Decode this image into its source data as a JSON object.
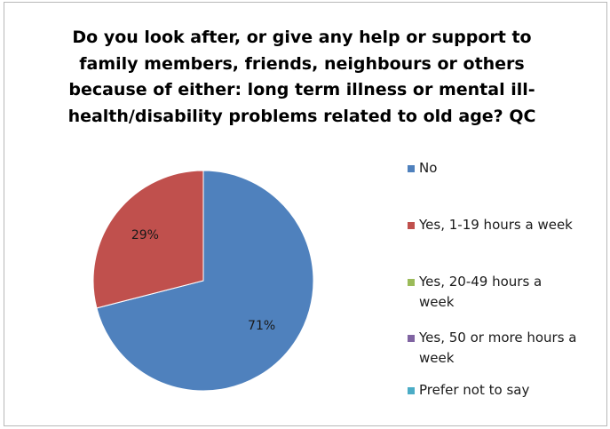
{
  "chart_data": {
    "type": "pie",
    "title_lines": [
      "Do you look after, or give any help or support to",
      "family members, friends, neighbours or others",
      "because of either: long term illness or mental ill-",
      "health/disability problems related to old age? QC"
    ],
    "categories": [
      "No",
      "Yes, 1-19 hours a week",
      "Yes, 20-49 hours a week",
      "Yes, 50 or more hours a week",
      "Prefer not to say"
    ],
    "legend_lines": [
      [
        "No"
      ],
      [
        "Yes, 1-19 hours a week"
      ],
      [
        "Yes, 20-49 hours a",
        "week"
      ],
      [
        "Yes, 50 or more hours a",
        "week"
      ],
      [
        "Prefer not to say"
      ]
    ],
    "values": [
      71,
      29,
      0,
      0,
      0
    ],
    "data_labels": [
      "71%",
      "29%",
      "",
      "",
      ""
    ],
    "colors": [
      "#4f81bd",
      "#c0504d",
      "#9bbb59",
      "#8064a2",
      "#4bacc6"
    ],
    "legend_position": "right"
  }
}
